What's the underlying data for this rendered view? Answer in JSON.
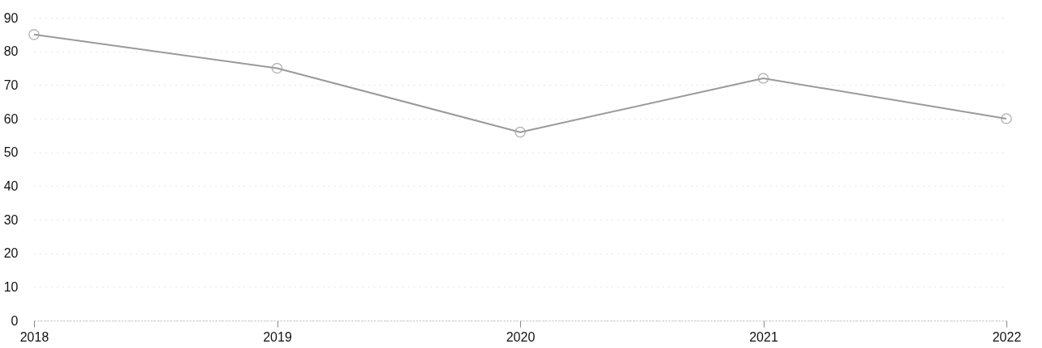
{
  "chart_data": {
    "type": "line",
    "categories": [
      "2018",
      "2019",
      "2020",
      "2021",
      "2022"
    ],
    "series": [
      {
        "color": "#9a9a9a",
        "values": [
          85,
          75,
          56,
          72,
          60
        ]
      }
    ],
    "ylim": [
      0,
      90
    ],
    "yticks": [
      0,
      10,
      20,
      30,
      40,
      50,
      60,
      70,
      80,
      90
    ],
    "grid": "y",
    "marker": "circle",
    "line_style": "solid"
  }
}
